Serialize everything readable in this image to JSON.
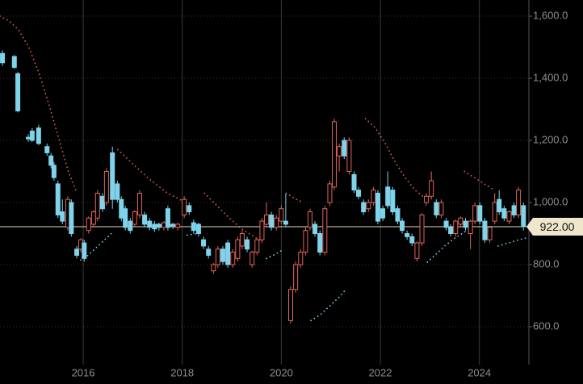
{
  "chart_data": {
    "type": "candlestick",
    "xlim": [
      2014.32,
      2025.0
    ],
    "ylim": [
      478,
      1652
    ],
    "xticks": [
      2016,
      2018,
      2020,
      2022,
      2024
    ],
    "yticks": [
      {
        "value": 600,
        "label": "600.0"
      },
      {
        "value": 800,
        "label": "800.0"
      },
      {
        "value": 1000,
        "label": "1,000.0"
      },
      {
        "value": 1200,
        "label": "1,200.0"
      },
      {
        "value": 1400,
        "label": "1,400.0"
      },
      {
        "value": 1600,
        "label": "1,600.0"
      }
    ],
    "grid": true,
    "up_color": "#e0665a",
    "down_color": "#7fd3ea",
    "x": [
      2014.37,
      2014.61,
      2014.68,
      2014.89,
      2014.97,
      2015.1,
      2015.27,
      2015.35,
      2015.41,
      2015.49,
      2015.58,
      2015.69,
      2015.76,
      2015.87,
      2015.95,
      2016.02,
      2016.11,
      2016.21,
      2016.29,
      2016.39,
      2016.47,
      2016.59,
      2016.69,
      2016.77,
      2016.85,
      2016.95,
      2017.04,
      2017.14,
      2017.24,
      2017.34,
      2017.44,
      2017.53,
      2017.63,
      2017.71,
      2017.81,
      2017.91,
      2018.04,
      2018.14,
      2018.23,
      2018.33,
      2018.43,
      2018.53,
      2018.63,
      2018.72,
      2018.82,
      2018.92,
      2019.02,
      2019.12,
      2019.21,
      2019.31,
      2019.41,
      2019.51,
      2019.61,
      2019.7,
      2019.8,
      2019.9,
      2020.0,
      2020.09,
      2020.19,
      2020.29,
      2020.39,
      2020.49,
      2020.58,
      2020.68,
      2020.78,
      2020.88,
      2020.98,
      2021.07,
      2021.17,
      2021.27,
      2021.37,
      2021.47,
      2021.56,
      2021.66,
      2021.76,
      2021.86,
      2021.95,
      2022.05,
      2022.15,
      2022.25,
      2022.35,
      2022.44,
      2022.54,
      2022.64,
      2022.74,
      2022.84,
      2022.93,
      2023.03,
      2023.13,
      2023.23,
      2023.33,
      2023.42,
      2023.52,
      2023.62,
      2023.72,
      2023.82,
      2023.91,
      2024.01,
      2024.11,
      2024.21,
      2024.31,
      2024.4,
      2024.5,
      2024.6,
      2024.7,
      2024.79,
      2024.89
    ],
    "open": [
      1480,
      1470,
      1415,
      1210,
      1230,
      1240,
      1180,
      1150,
      1120,
      1060,
      970,
      920,
      1000,
      850,
      850,
      870,
      910,
      930,
      950,
      1020,
      1000,
      1160,
      1060,
      1010,
      980,
      940,
      930,
      960,
      960,
      940,
      930,
      930,
      920,
      980,
      930,
      920,
      960,
      990,
      935,
      930,
      880,
      850,
      780,
      800,
      850,
      870,
      800,
      820,
      860,
      880,
      800,
      840,
      880,
      930,
      960,
      920,
      940,
      940,
      620,
      720,
      800,
      840,
      920,
      930,
      900,
      840,
      1000,
      1050,
      1150,
      1200,
      1100,
      1090,
      1040,
      1000,
      980,
      1000,
      1030,
      980,
      1050,
      1040,
      980,
      940,
      900,
      890,
      820,
      870,
      1000,
      1020,
      1000,
      960,
      940,
      920,
      900,
      930,
      940,
      900,
      940,
      990,
      940,
      880,
      940,
      1010,
      980,
      940,
      990,
      960,
      990
    ],
    "high": [
      1490,
      1475,
      1420,
      1220,
      1240,
      1250,
      1190,
      1160,
      1130,
      1070,
      1010,
      1020,
      1010,
      860,
      885,
      880,
      955,
      975,
      1040,
      1030,
      1110,
      1180,
      1070,
      1020,
      990,
      950,
      975,
      1040,
      970,
      950,
      940,
      935,
      940,
      990,
      935,
      935,
      1020,
      1000,
      945,
      935,
      890,
      860,
      805,
      860,
      860,
      880,
      850,
      890,
      910,
      890,
      845,
      885,
      950,
      1000,
      970,
      960,
      990,
      1030,
      730,
      810,
      850,
      920,
      980,
      940,
      910,
      990,
      1070,
      1270,
      1190,
      1210,
      1210,
      1100,
      1050,
      1010,
      1010,
      1050,
      1040,
      990,
      1100,
      1050,
      990,
      950,
      910,
      900,
      875,
      965,
      1030,
      1100,
      1010,
      1010,
      950,
      930,
      945,
      955,
      950,
      945,
      1000,
      1000,
      950,
      925,
      1030,
      1040,
      990,
      975,
      1000,
      1050,
      1000
    ],
    "low": [
      1440,
      1430,
      1290,
      1195,
      1195,
      1185,
      1150,
      1110,
      1070,
      950,
      930,
      910,
      890,
      820,
      840,
      810,
      900,
      920,
      940,
      970,
      990,
      980,
      1000,
      940,
      910,
      900,
      920,
      950,
      920,
      910,
      905,
      910,
      910,
      910,
      915,
      910,
      950,
      960,
      900,
      890,
      850,
      820,
      770,
      790,
      800,
      790,
      790,
      810,
      850,
      840,
      790,
      830,
      870,
      920,
      910,
      910,
      930,
      920,
      610,
      710,
      790,
      830,
      910,
      890,
      830,
      830,
      990,
      1040,
      1100,
      1140,
      1090,
      1030,
      1010,
      960,
      970,
      990,
      930,
      940,
      980,
      960,
      930,
      900,
      880,
      860,
      810,
      860,
      990,
      1010,
      950,
      950,
      910,
      890,
      890,
      920,
      910,
      850,
      930,
      930,
      870,
      870,
      930,
      960,
      940,
      930,
      950,
      950,
      910
    ],
    "close": [
      1450,
      1435,
      1295,
      1205,
      1200,
      1190,
      1160,
      1120,
      1080,
      960,
      940,
      1010,
      900,
      830,
      880,
      820,
      950,
      970,
      1030,
      980,
      1100,
      1010,
      1010,
      950,
      920,
      910,
      970,
      1030,
      930,
      920,
      915,
      920,
      935,
      920,
      925,
      930,
      1010,
      970,
      910,
      900,
      860,
      830,
      800,
      850,
      810,
      800,
      840,
      880,
      900,
      850,
      840,
      880,
      940,
      960,
      920,
      950,
      980,
      930,
      720,
      800,
      840,
      910,
      970,
      900,
      840,
      980,
      1060,
      1260,
      1180,
      1150,
      1200,
      1040,
      1020,
      970,
      1000,
      1040,
      940,
      950,
      990,
      970,
      940,
      910,
      890,
      870,
      870,
      960,
      1020,
      1070,
      960,
      1000,
      920,
      900,
      940,
      950,
      920,
      940,
      990,
      940,
      880,
      920,
      1000,
      970,
      950,
      970,
      960,
      1040,
      922
    ],
    "last_value": 922,
    "last_value_label": "922.00",
    "overlays": [
      {
        "color": "#e0665a",
        "x": [
          2014.32,
          2014.5,
          2014.7,
          2014.9,
          2015.1,
          2015.3,
          2015.5,
          2015.7,
          2015.85,
          2015.9,
          2016.7,
          2016.9,
          2017.1,
          2017.3,
          2017.5,
          2017.7,
          2017.95,
          2018.05,
          2018.1,
          2018.45,
          2018.7,
          2018.95,
          2019.2,
          2019.45,
          2019.6,
          2019.65,
          2020.1,
          2020.3,
          2020.45,
          2020.5,
          2021.7,
          2021.9,
          2022.1,
          2022.3,
          2022.5,
          2022.7,
          2022.9,
          2023.0,
          2023.7,
          2023.9,
          2024.1,
          2024.3
        ],
        "values": [
          1600,
          1585,
          1555,
          1500,
          1420,
          1320,
          1210,
          1100,
          1040,
          null,
          1170,
          1140,
          1110,
          1080,
          1055,
          1030,
          1010,
          1000,
          null,
          1030,
          990,
          950,
          915,
          890,
          875,
          null,
          1030,
          1010,
          1000,
          null,
          1270,
          1240,
          1190,
          1130,
          1080,
          1040,
          1015,
          null,
          1100,
          1080,
          1060,
          1040
        ]
      },
      {
        "color": "#7fd3ea",
        "x": [
          2015.95,
          2016.1,
          2016.3,
          2016.5,
          2016.6,
          2016.65,
          2018.1,
          2018.3,
          2018.4,
          2019.7,
          2019.9,
          2020.05,
          2020.1,
          2020.6,
          2020.8,
          2021.0,
          2021.2,
          2021.3,
          2021.4,
          2022.95,
          2023.1,
          2023.3,
          2023.5,
          2023.75,
          2023.8,
          2024.38,
          2024.6,
          2024.8,
          2025.0
        ],
        "values": [
          815,
          830,
          860,
          890,
          905,
          null,
          895,
          900,
          null,
          820,
          835,
          850,
          null,
          620,
          640,
          670,
          700,
          720,
          null,
          808,
          830,
          860,
          885,
          910,
          null,
          860,
          870,
          880,
          888
        ]
      }
    ]
  }
}
